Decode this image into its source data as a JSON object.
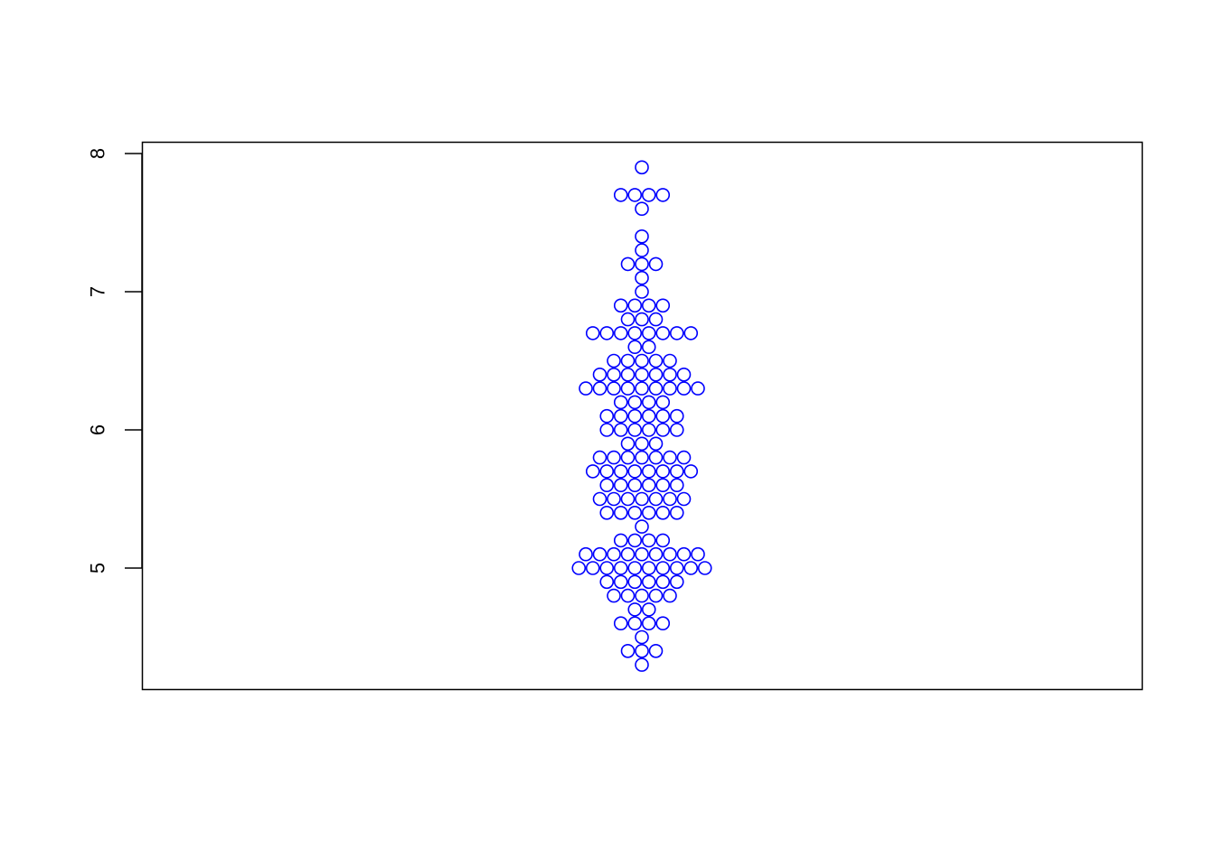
{
  "chart_data": {
    "type": "scatter",
    "subtype": "beeswarm",
    "title": "",
    "xlabel": "",
    "ylabel": "",
    "ylim": [
      4.3,
      7.9
    ],
    "yticks": [
      {
        "value": 5,
        "label": "5"
      },
      {
        "value": 6,
        "label": "6"
      },
      {
        "value": 7,
        "label": "7"
      },
      {
        "value": 8,
        "label": "8"
      }
    ],
    "point_color": "#0000ff",
    "point_style": "open-circle",
    "box": true,
    "grid": false,
    "bins": [
      {
        "y": 7.9,
        "count": 1
      },
      {
        "y": 7.7,
        "count": 4
      },
      {
        "y": 7.6,
        "count": 1
      },
      {
        "y": 7.4,
        "count": 1
      },
      {
        "y": 7.3,
        "count": 1
      },
      {
        "y": 7.2,
        "count": 3
      },
      {
        "y": 7.1,
        "count": 1
      },
      {
        "y": 7.0,
        "count": 1
      },
      {
        "y": 6.9,
        "count": 4
      },
      {
        "y": 6.8,
        "count": 3
      },
      {
        "y": 6.7,
        "count": 8
      },
      {
        "y": 6.6,
        "count": 2
      },
      {
        "y": 6.5,
        "count": 5
      },
      {
        "y": 6.4,
        "count": 7
      },
      {
        "y": 6.3,
        "count": 9
      },
      {
        "y": 6.2,
        "count": 4
      },
      {
        "y": 6.1,
        "count": 6
      },
      {
        "y": 6.0,
        "count": 6
      },
      {
        "y": 5.9,
        "count": 3
      },
      {
        "y": 5.8,
        "count": 7
      },
      {
        "y": 5.7,
        "count": 8
      },
      {
        "y": 5.6,
        "count": 6
      },
      {
        "y": 5.5,
        "count": 7
      },
      {
        "y": 5.4,
        "count": 6
      },
      {
        "y": 5.3,
        "count": 1
      },
      {
        "y": 5.2,
        "count": 4
      },
      {
        "y": 5.1,
        "count": 9
      },
      {
        "y": 5.0,
        "count": 10
      },
      {
        "y": 4.9,
        "count": 6
      },
      {
        "y": 4.8,
        "count": 5
      },
      {
        "y": 4.7,
        "count": 2
      },
      {
        "y": 4.6,
        "count": 4
      },
      {
        "y": 4.5,
        "count": 1
      },
      {
        "y": 4.4,
        "count": 3
      },
      {
        "y": 4.3,
        "count": 1
      }
    ]
  }
}
